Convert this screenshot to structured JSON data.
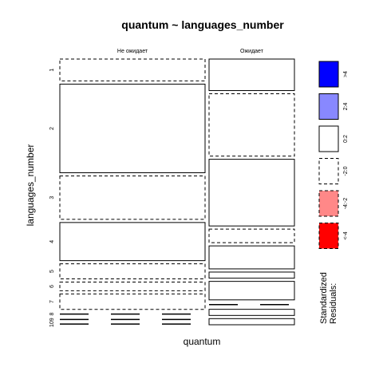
{
  "chart_data": {
    "type": "mosaic",
    "title": "quantum ~ languages_number",
    "xlabel": "quantum",
    "ylabel": "languages_number",
    "columns": [
      "Не ожидает",
      "Ожидает"
    ],
    "column_proportions": [
      0.66,
      0.34
    ],
    "rows": [
      "1",
      "2",
      "3",
      "4",
      "5",
      "6",
      "7",
      "8",
      "9",
      "10"
    ],
    "cells": [
      {
        "row": "1",
        "not_wait": 0.0842,
        "wait": 0.1143,
        "res_not_wait": "-2:0",
        "res_wait": "0:2"
      },
      {
        "row": "2",
        "not_wait": 0.3411,
        "wait": 0.2258,
        "res_not_wait": "0:2",
        "res_wait": "-2:0"
      },
      {
        "row": "3",
        "not_wait": 0.167,
        "wait": 0.2417,
        "res_not_wait": "-2:0",
        "res_wait": "0:2"
      },
      {
        "row": "4",
        "not_wait": 0.1467,
        "wait": 0.0491,
        "res_not_wait": "0:2",
        "res_wait": "-2:0"
      },
      {
        "row": "5",
        "not_wait": 0.058,
        "wait": 0.0833,
        "res_not_wait": "-2:0",
        "res_wait": "0:2"
      },
      {
        "row": "6",
        "not_wait": 0.0332,
        "wait": 0.0222,
        "res_not_wait": "-2:0",
        "res_wait": "0:2"
      },
      {
        "row": "7",
        "not_wait": 0.0598,
        "wait": 0.067,
        "res_not_wait": "-2:0",
        "res_wait": "0:2"
      },
      {
        "row": "8",
        "not_wait": 0.0111,
        "wait": 0.0111,
        "res_not_wait": "-2:0",
        "res_wait": "-2:0"
      },
      {
        "row": "9",
        "not_wait": 0.0055,
        "wait": 0.0222,
        "res_not_wait": "-2:0",
        "res_wait": "0:2"
      },
      {
        "row": "10",
        "not_wait": 0.0055,
        "wait": 0.0222,
        "res_not_wait": "-2:0",
        "res_wait": "0:2"
      }
    ],
    "legend": {
      "title_line1": "Standardized",
      "title_line2": "Residuals:",
      "entries": [
        {
          "label": ">4",
          "color": "#0000FF",
          "dashed": false
        },
        {
          "label": "2:4",
          "color": "#8888FF",
          "dashed": false
        },
        {
          "label": "0:2",
          "color": "#FFFFFF",
          "dashed": false
        },
        {
          "label": "-2:0",
          "color": "#FFFFFF",
          "dashed": true
        },
        {
          "label": "-4:-2",
          "color": "#FF8888",
          "dashed": true
        },
        {
          "label": "<-4",
          "color": "#FF0000",
          "dashed": true
        }
      ]
    }
  }
}
